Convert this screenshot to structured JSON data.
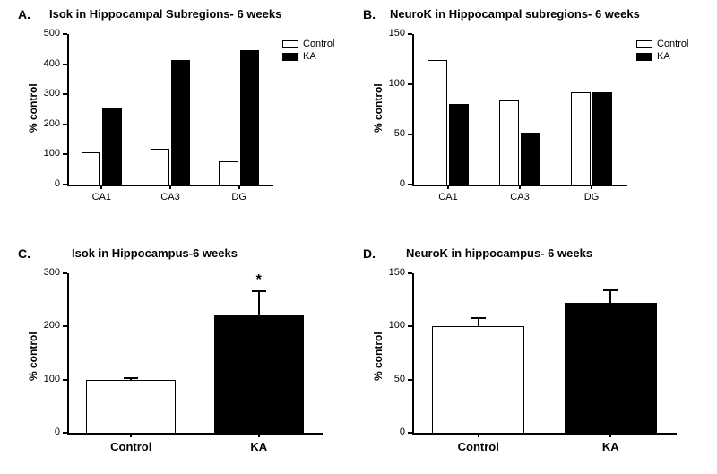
{
  "colors": {
    "control_fill": "#ffffff",
    "ka_fill": "#000000",
    "axis": "#000000",
    "background": "#ffffff",
    "border": "#000000"
  },
  "panelA": {
    "label": "A.",
    "title": "Isok in Hippocampal Subregions- 6 weeks",
    "type": "bar",
    "ylabel": "% control",
    "ylim": [
      0,
      500
    ],
    "ytick_step": 100,
    "yticks": [
      0,
      100,
      200,
      300,
      400,
      500
    ],
    "categories": [
      "CA1",
      "CA3",
      "DG"
    ],
    "series": [
      {
        "name": "Control",
        "values": [
          108,
          118,
          78
        ]
      },
      {
        "name": "KA",
        "values": [
          252,
          415,
          445
        ]
      }
    ],
    "legend": [
      "Control",
      "KA"
    ]
  },
  "panelB": {
    "label": "B.",
    "title": "NeuroK in Hippocampal subregions- 6 weeks",
    "type": "bar",
    "ylabel": "% control",
    "ylim": [
      0,
      150
    ],
    "ytick_step": 50,
    "yticks": [
      0,
      50,
      100,
      150
    ],
    "categories": [
      "CA1",
      "CA3",
      "DG"
    ],
    "series": [
      {
        "name": "Control",
        "values": [
          124,
          84,
          92
        ]
      },
      {
        "name": "KA",
        "values": [
          80,
          52,
          92
        ]
      }
    ],
    "legend": [
      "Control",
      "KA"
    ]
  },
  "panelC": {
    "label": "C.",
    "title": "Isok in Hippocampus-6 weeks",
    "type": "bar",
    "ylabel": "% control",
    "ylim": [
      0,
      300
    ],
    "ytick_step": 100,
    "yticks": [
      0,
      100,
      200,
      300
    ],
    "categories": [
      "Control",
      "KA"
    ],
    "values": [
      100,
      220
    ],
    "errors": [
      5,
      48
    ],
    "fills": [
      "#ffffff",
      "#000000"
    ],
    "sig_label": "*",
    "sig_over": "KA"
  },
  "panelD": {
    "label": "D.",
    "title": "NeuroK in hippocampus- 6 weeks",
    "type": "bar",
    "ylabel": "% control",
    "ylim": [
      0,
      150
    ],
    "ytick_step": 50,
    "yticks": [
      0,
      50,
      100,
      150
    ],
    "categories": [
      "Control",
      "KA"
    ],
    "values": [
      100,
      122
    ],
    "errors": [
      9,
      13
    ],
    "fills": [
      "#ffffff",
      "#000000"
    ]
  }
}
